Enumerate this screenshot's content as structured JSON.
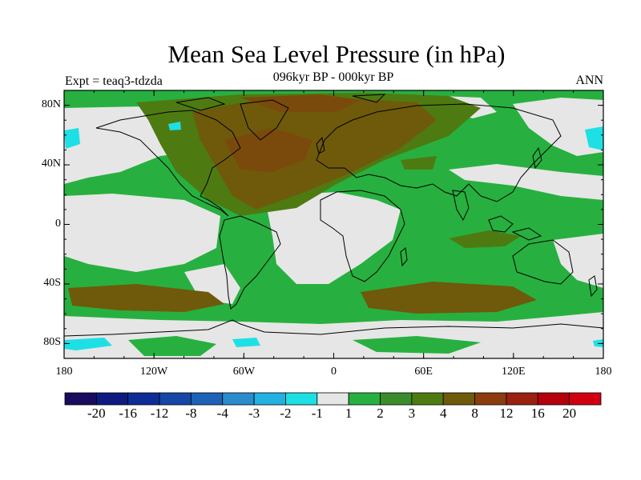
{
  "title": "Mean Sea Level Pressure (in hPa)",
  "subtitle": "096kyr BP - 000kyr BP",
  "experiment_label": "Expt = teaq3-tdzda",
  "season_label": "ANN",
  "lat_ticks": [
    {
      "value": 80,
      "label": "80N"
    },
    {
      "value": 40,
      "label": "40N"
    },
    {
      "value": 0,
      "label": "0"
    },
    {
      "value": -40,
      "label": "40S"
    },
    {
      "value": -80,
      "label": "80S"
    }
  ],
  "lon_ticks": [
    {
      "value": -180,
      "label": "180"
    },
    {
      "value": -120,
      "label": "120W"
    },
    {
      "value": -60,
      "label": "60W"
    },
    {
      "value": 0,
      "label": "0"
    },
    {
      "value": 60,
      "label": "60E"
    },
    {
      "value": 120,
      "label": "120E"
    },
    {
      "value": 180,
      "label": "180"
    }
  ],
  "colorbar": {
    "colors": [
      "#1a0b5e",
      "#0e1a80",
      "#0f2d96",
      "#1646a6",
      "#1d62b6",
      "#2a8ccd",
      "#22b1e0",
      "#1de0e5",
      "#e6e6e6",
      "#27b03f",
      "#3a8d2a",
      "#4e7a12",
      "#6e5a0a",
      "#8b3d0d",
      "#9a2010",
      "#b3000c",
      "#d10010"
    ],
    "labels": [
      "-20",
      "-16",
      "-12",
      "-8",
      "-4",
      "-3",
      "-2",
      "-1",
      "1",
      "2",
      "3",
      "4",
      "8",
      "12",
      "16",
      "20"
    ]
  },
  "map_colors": {
    "ocean_light": "#e6e6e6",
    "green": "#27b03f",
    "dark_green": "#4e7a12",
    "olive": "#6e5a0a",
    "brown": "#7a4a0c",
    "cyan": "#1de0e5"
  }
}
